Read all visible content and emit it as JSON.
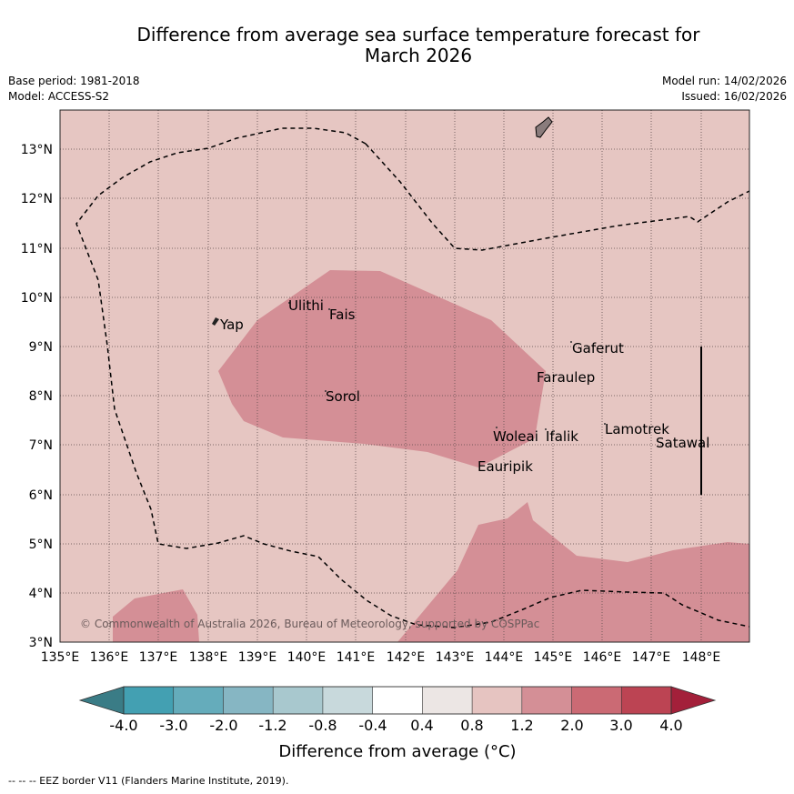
{
  "header": {
    "title_line1": "Difference from average sea surface temperature forecast for",
    "title_line2": "March 2026",
    "base_period": "Base period: 1981-2018",
    "model": "Model: ACCESS-S2",
    "model_run": "Model run: 14/02/2026",
    "issued": "Issued: 16/02/2026"
  },
  "map": {
    "lon_range": [
      135,
      149
    ],
    "lat_range": [
      3,
      13.8
    ],
    "lon_ticks": [
      "135°E",
      "136°E",
      "137°E",
      "138°E",
      "139°E",
      "140°E",
      "141°E",
      "142°E",
      "143°E",
      "144°E",
      "145°E",
      "146°E",
      "147°E",
      "148°E"
    ],
    "lat_ticks": [
      "3°N",
      "4°N",
      "5°N",
      "6°N",
      "7°N",
      "8°N",
      "9°N",
      "10°N",
      "11°N",
      "12°N",
      "13°N"
    ],
    "places": [
      "Yap",
      "Ulithi",
      "Fais",
      "Gaferut",
      "Faraulep",
      "Sorol",
      "Lamotrek",
      "Woleai",
      "Ifalik",
      "Satawal",
      "Eauripik"
    ],
    "copyright": "© Commonwealth of Australia 2026, Bureau of Meteorology, supported by COSPPac",
    "background_band": "0.8 to 1.2",
    "warm_band": "1.2 to 2.0"
  },
  "colorbar": {
    "labels": [
      "-4.0",
      "-3.0",
      "-2.0",
      "-1.2",
      "-0.8",
      "-0.4",
      "0.4",
      "0.8",
      "1.2",
      "2.0",
      "3.0",
      "4.0"
    ],
    "colors": [
      "#43a0b2",
      "#65acbb",
      "#86b6c3",
      "#a8c8ce",
      "#c8d9dc",
      "#ffffff",
      "#ece6e4",
      "#e6c4c1",
      "#d48f96",
      "#cb6a74",
      "#bc4453"
    ],
    "under_color": "#3a7c86",
    "over_color": "#a3203a",
    "xlabel": "Difference from average (°C)"
  },
  "footer": {
    "legend_text": "--  --  -- EEZ border V11 (Flanders Marine Institute, 2019)."
  }
}
